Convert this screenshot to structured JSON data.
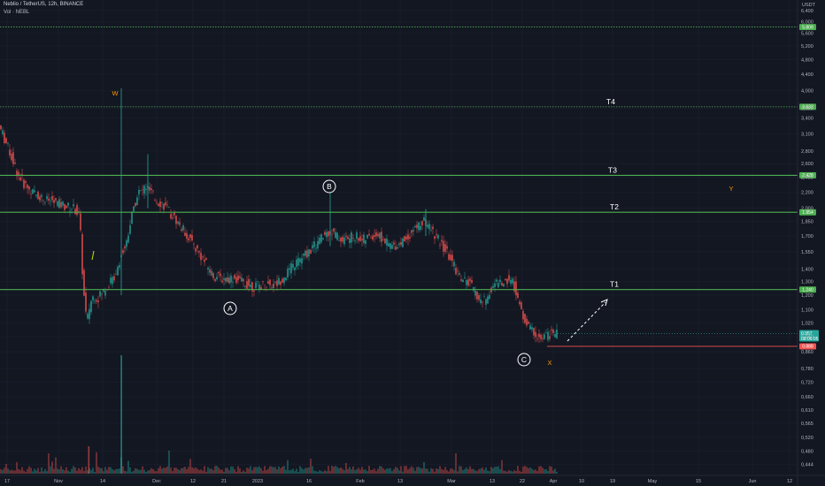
{
  "header": {
    "title": "Neblio / TetherUS, 12h, BINANCE",
    "indicator": "Vol · NEBL",
    "currency": "USDT"
  },
  "colors": {
    "up": "#26a69a",
    "down": "#ef5350",
    "level": "#4caf50",
    "background": "#131722",
    "wave": "#ff9800"
  },
  "chart_data": {
    "type": "candlestick",
    "scale": "log",
    "ylim": [
      0.42,
      6.6
    ],
    "y_ticks": [
      "6,400",
      "6,000",
      "5,600",
      "5,200",
      "4,800",
      "4,400",
      "4,000",
      "3,600",
      "3,400",
      "3,100",
      "2,800",
      "2,600",
      "2,400",
      "2,200",
      "2,000",
      "1,850",
      "1,700",
      "1,550",
      "1,400",
      "1,300",
      "1,200",
      "1,100",
      "1,020",
      "0,940",
      "0,860",
      "0,780",
      "0,720",
      "0,660",
      "0,610",
      "0,565",
      "0,520",
      "0,480",
      "0,444"
    ],
    "x_ticks": [
      "17",
      "Nov",
      "14",
      "Dec",
      "12",
      "21",
      "2023",
      "16",
      "Feb",
      "13",
      "Mar",
      "13",
      "22",
      "Apr",
      "10",
      "19",
      "May",
      "15",
      "Jun",
      "12"
    ],
    "levels": [
      {
        "name": "",
        "value": 5.809,
        "label": "5.809",
        "style": "dotted"
      },
      {
        "name": "T4",
        "value": 3.633,
        "label": "3.633",
        "style": "dotted"
      },
      {
        "name": "T3",
        "value": 2.428,
        "label": "2.428",
        "style": "solid"
      },
      {
        "name": "T2",
        "value": 1.954,
        "label": "1.954",
        "style": "solid"
      },
      {
        "name": "T1",
        "value": 1.24,
        "label": "1.240",
        "style": "solid"
      }
    ],
    "current_price": {
      "value": 0.957,
      "label": "0.957",
      "countdown": "08:06:05"
    },
    "stop_level": {
      "value": 0.888,
      "label": "0.888"
    },
    "price_path": [
      [
        0,
        3.3
      ],
      [
        6,
        3.05
      ],
      [
        14,
        2.75
      ],
      [
        22,
        2.45
      ],
      [
        30,
        2.3
      ],
      [
        38,
        2.2
      ],
      [
        46,
        2.15
      ],
      [
        54,
        2.1
      ],
      [
        62,
        2.08
      ],
      [
        70,
        2.05
      ],
      [
        78,
        2.02
      ],
      [
        86,
        2.0
      ],
      [
        92,
        1.9
      ],
      [
        96,
        1.25
      ],
      [
        100,
        1.02
      ],
      [
        104,
        1.15
      ],
      [
        108,
        1.2
      ],
      [
        112,
        1.18
      ],
      [
        118,
        1.22
      ],
      [
        124,
        1.28
      ],
      [
        130,
        1.32
      ],
      [
        136,
        1.45
      ],
      [
        140,
        1.55
      ],
      [
        144,
        1.6
      ],
      [
        148,
        1.8
      ],
      [
        154,
        2.05
      ],
      [
        158,
        2.2
      ],
      [
        162,
        2.2
      ],
      [
        166,
        2.28
      ],
      [
        172,
        2.2
      ],
      [
        178,
        2.1
      ],
      [
        186,
        2.05
      ],
      [
        194,
        1.95
      ],
      [
        202,
        1.85
      ],
      [
        210,
        1.75
      ],
      [
        218,
        1.65
      ],
      [
        226,
        1.55
      ],
      [
        234,
        1.45
      ],
      [
        242,
        1.35
      ],
      [
        250,
        1.33
      ],
      [
        258,
        1.32
      ],
      [
        266,
        1.33
      ],
      [
        274,
        1.3
      ],
      [
        282,
        1.28
      ],
      [
        288,
        1.26
      ],
      [
        296,
        1.27
      ],
      [
        304,
        1.28
      ],
      [
        312,
        1.27
      ],
      [
        320,
        1.32
      ],
      [
        328,
        1.38
      ],
      [
        336,
        1.45
      ],
      [
        344,
        1.5
      ],
      [
        352,
        1.56
      ],
      [
        360,
        1.63
      ],
      [
        368,
        1.7
      ],
      [
        374,
        1.75
      ],
      [
        380,
        1.72
      ],
      [
        388,
        1.66
      ],
      [
        396,
        1.68
      ],
      [
        404,
        1.7
      ],
      [
        412,
        1.66
      ],
      [
        420,
        1.69
      ],
      [
        428,
        1.72
      ],
      [
        436,
        1.65
      ],
      [
        444,
        1.6
      ],
      [
        452,
        1.62
      ],
      [
        460,
        1.67
      ],
      [
        468,
        1.75
      ],
      [
        476,
        1.82
      ],
      [
        482,
        1.85
      ],
      [
        488,
        1.78
      ],
      [
        494,
        1.7
      ],
      [
        500,
        1.62
      ],
      [
        506,
        1.55
      ],
      [
        512,
        1.47
      ],
      [
        518,
        1.38
      ],
      [
        524,
        1.32
      ],
      [
        532,
        1.29
      ],
      [
        540,
        1.2
      ],
      [
        546,
        1.15
      ],
      [
        552,
        1.18
      ],
      [
        558,
        1.26
      ],
      [
        564,
        1.3
      ],
      [
        570,
        1.28
      ],
      [
        578,
        1.33
      ],
      [
        584,
        1.25
      ],
      [
        590,
        1.1
      ],
      [
        596,
        1.02
      ],
      [
        602,
        0.98
      ],
      [
        608,
        0.95
      ],
      [
        614,
        0.92
      ],
      [
        620,
        0.95
      ],
      [
        626,
        0.96
      ],
      [
        630,
        0.957
      ]
    ],
    "spikes": [
      {
        "x": 137,
        "high": 4.05,
        "low": 1.2
      },
      {
        "x": 167,
        "high": 2.75,
        "low": 2.0
      },
      {
        "x": 373,
        "high": 2.3,
        "low": 1.6
      },
      {
        "x": 481,
        "high": 1.99,
        "low": 1.7
      }
    ]
  },
  "annotations": {
    "waves": {
      "A": "A",
      "B": "B",
      "C": "C"
    },
    "orange": {
      "W": "W",
      "X": "X",
      "Y": "Y"
    },
    "targets": {
      "T4": "T4",
      "T3": "T3",
      "T2": "T2",
      "T1": "T1"
    }
  }
}
